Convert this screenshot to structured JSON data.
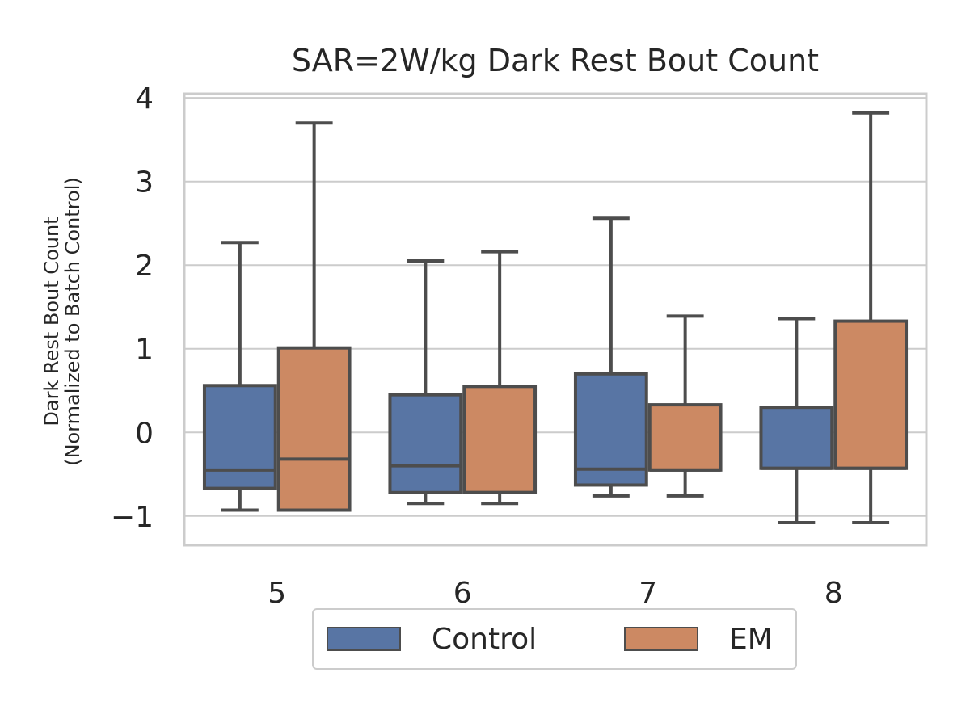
{
  "chart_data": {
    "type": "box",
    "title": "SAR=2W/kg Dark Rest Bout Count",
    "ylabel": [
      "Dark Rest Bout Count",
      "(Normalized to Batch Control)"
    ],
    "xlabel": "",
    "categories": [
      "5",
      "6",
      "7",
      "8"
    ],
    "ylim": [
      -1.35,
      4.05
    ],
    "yticks": [
      -1,
      0,
      1,
      2,
      3,
      4
    ],
    "ytick_labels": [
      "−1",
      "0",
      "1",
      "2",
      "3",
      "4"
    ],
    "grid": true,
    "legend_position": "bottom-center",
    "series": [
      {
        "name": "Control",
        "color": "#5875a4",
        "boxes": [
          {
            "whisker_low": -0.93,
            "q1": -0.67,
            "median": -0.45,
            "q3": 0.56,
            "whisker_high": 2.27
          },
          {
            "whisker_low": -0.85,
            "q1": -0.72,
            "median": -0.4,
            "q3": 0.45,
            "whisker_high": 2.05
          },
          {
            "whisker_low": -0.76,
            "q1": -0.63,
            "median": -0.44,
            "q3": 0.7,
            "whisker_high": 2.56
          },
          {
            "whisker_low": -1.08,
            "q1": -0.43,
            "median": -0.43,
            "q3": 0.3,
            "whisker_high": 1.36
          }
        ]
      },
      {
        "name": "EM",
        "color": "#cc8963",
        "boxes": [
          {
            "whisker_low": -0.93,
            "q1": -0.93,
            "median": -0.32,
            "q3": 1.01,
            "whisker_high": 3.7
          },
          {
            "whisker_low": -0.85,
            "q1": -0.72,
            "median": -0.72,
            "q3": 0.55,
            "whisker_high": 2.16
          },
          {
            "whisker_low": -0.76,
            "q1": -0.45,
            "median": -0.45,
            "q3": 0.33,
            "whisker_high": 1.39
          },
          {
            "whisker_low": -1.08,
            "q1": -0.43,
            "median": -0.43,
            "q3": 1.33,
            "whisker_high": 3.82
          }
        ]
      }
    ]
  }
}
